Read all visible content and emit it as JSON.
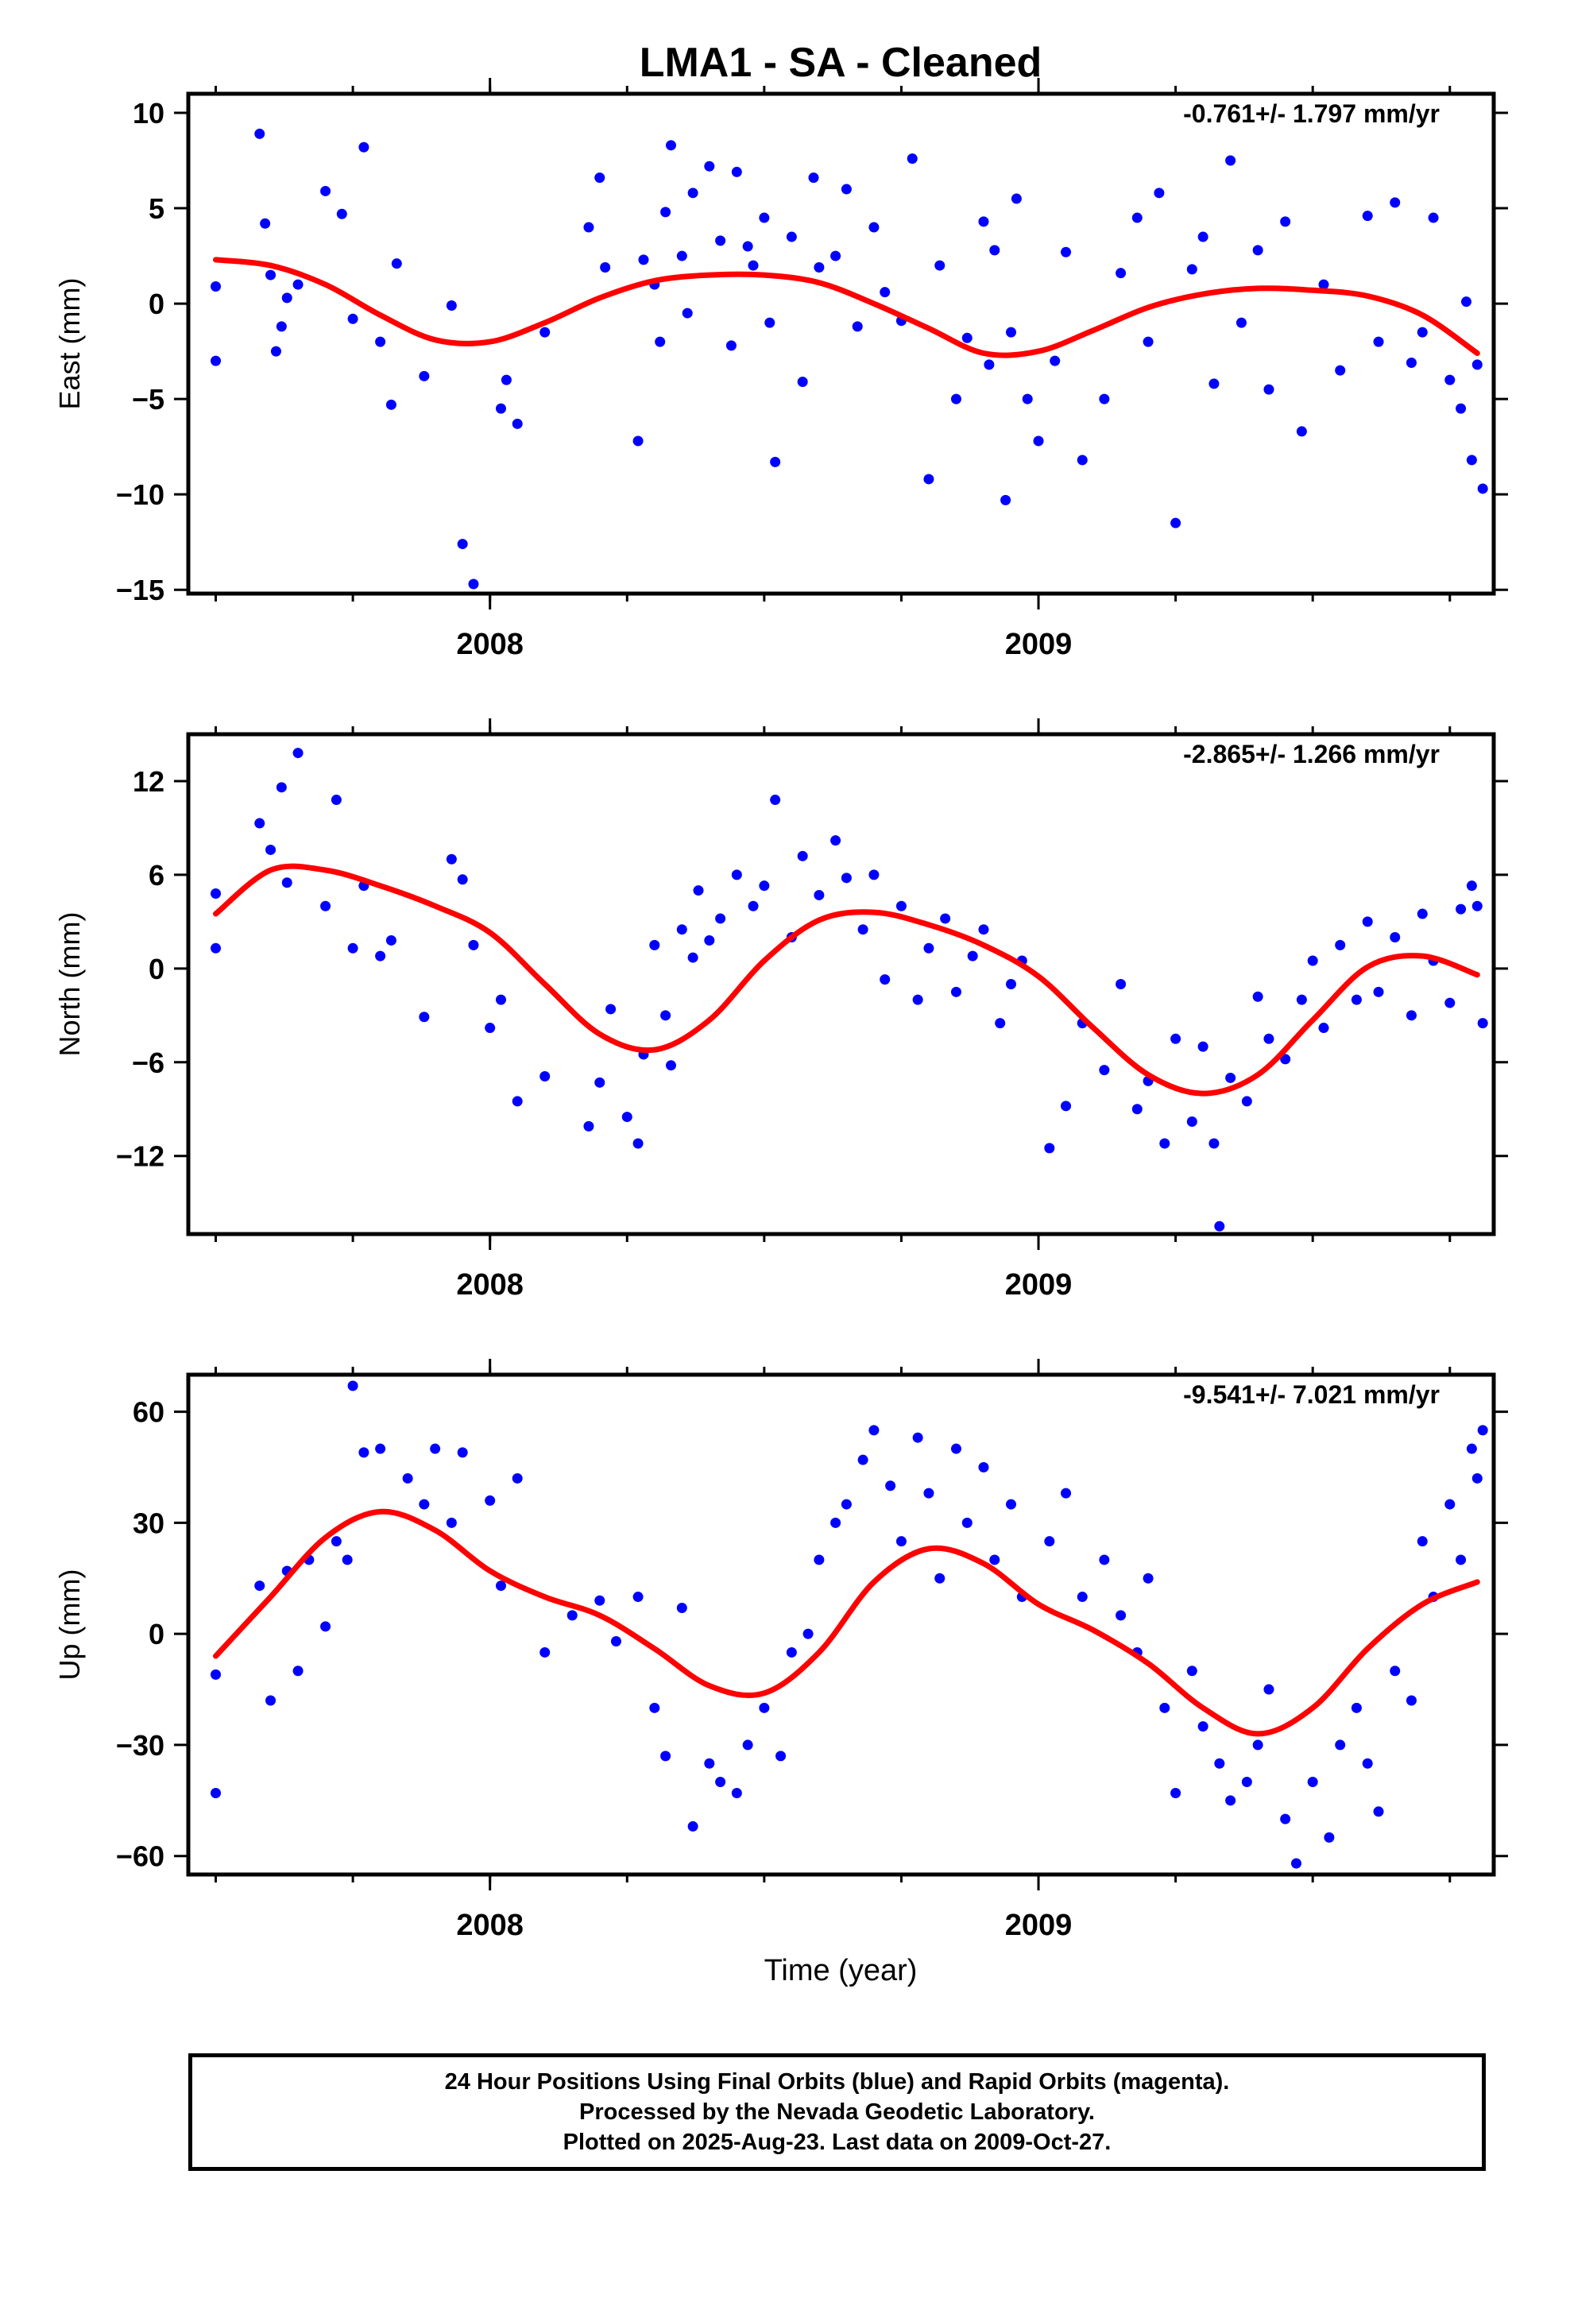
{
  "title": "LMA1  - SA - Cleaned",
  "colors": {
    "points": "#0000ff",
    "fit": "#ff0000",
    "frame": "#000000"
  },
  "xlabel": "Time (year)",
  "footer": {
    "line1": "24 Hour Positions Using Final Orbits (blue) and Rapid Orbits (magenta).",
    "line2": "Processed by the Nevada Geodetic Laboratory.",
    "line3": "Plotted on 2025-Aug-23. Last data on 2009-Oct-27."
  },
  "chart_data": [
    {
      "type": "scatter",
      "ylabel": "East (mm)",
      "rate_label": "-0.761+/- 1.797 mm/yr",
      "xlim": [
        2007.45,
        2009.83
      ],
      "ylim": [
        -15.2,
        11.0
      ],
      "xticks": [
        2008,
        2009
      ],
      "yticks": [
        10,
        5,
        0,
        -5,
        -10,
        -15
      ],
      "ytick_labels": [
        "10",
        "5",
        "0",
        "−5",
        "−10",
        "−15"
      ],
      "fit": {
        "x": [
          2007.5,
          2007.6,
          2007.7,
          2007.8,
          2007.9,
          2008.0,
          2008.1,
          2008.2,
          2008.3,
          2008.4,
          2008.5,
          2008.6,
          2008.7,
          2008.8,
          2008.9,
          2009.0,
          2009.1,
          2009.2,
          2009.3,
          2009.4,
          2009.5,
          2009.6,
          2009.7,
          2009.8
        ],
        "y": [
          2.3,
          2.0,
          1.0,
          -0.6,
          -1.9,
          -2.0,
          -1.0,
          0.3,
          1.2,
          1.5,
          1.5,
          1.1,
          0.0,
          -1.3,
          -2.6,
          -2.5,
          -1.4,
          -0.2,
          0.5,
          0.8,
          0.7,
          0.4,
          -0.6,
          -2.6
        ]
      },
      "points": {
        "x": [
          2007.5,
          2007.5,
          2007.58,
          2007.59,
          2007.6,
          2007.61,
          2007.62,
          2007.63,
          2007.65,
          2007.7,
          2007.73,
          2007.75,
          2007.77,
          2007.8,
          2007.82,
          2007.83,
          2007.88,
          2007.93,
          2007.95,
          2007.97,
          2008.02,
          2008.03,
          2008.05,
          2008.1,
          2008.18,
          2008.2,
          2008.21,
          2008.27,
          2008.28,
          2008.3,
          2008.31,
          2008.32,
          2008.33,
          2008.35,
          2008.36,
          2008.37,
          2008.4,
          2008.42,
          2008.44,
          2008.45,
          2008.47,
          2008.48,
          2008.5,
          2008.51,
          2008.52,
          2008.55,
          2008.57,
          2008.59,
          2008.6,
          2008.63,
          2008.65,
          2008.67,
          2008.7,
          2008.72,
          2008.75,
          2008.77,
          2008.8,
          2008.82,
          2008.85,
          2008.87,
          2008.9,
          2008.91,
          2008.92,
          2008.94,
          2008.95,
          2008.96,
          2008.98,
          2009.0,
          2009.03,
          2009.05,
          2009.08,
          2009.12,
          2009.15,
          2009.18,
          2009.2,
          2009.22,
          2009.25,
          2009.28,
          2009.3,
          2009.32,
          2009.35,
          2009.37,
          2009.4,
          2009.42,
          2009.45,
          2009.48,
          2009.52,
          2009.55,
          2009.6,
          2009.62,
          2009.65,
          2009.68,
          2009.7,
          2009.72,
          2009.75,
          2009.77,
          2009.78,
          2009.79,
          2009.8,
          2009.81
        ],
        "y": [
          0.9,
          -3.0,
          8.9,
          4.2,
          1.5,
          -2.5,
          -1.2,
          0.3,
          1.0,
          5.9,
          4.7,
          -0.8,
          8.2,
          -2.0,
          -5.3,
          2.1,
          -3.8,
          -0.1,
          -12.6,
          -14.7,
          -5.5,
          -4.0,
          -6.3,
          -1.5,
          4.0,
          6.6,
          1.9,
          -7.2,
          2.3,
          1.0,
          -2.0,
          4.8,
          8.3,
          2.5,
          -0.5,
          5.8,
          7.2,
          3.3,
          -2.2,
          6.9,
          3.0,
          2.0,
          4.5,
          -1.0,
          -8.3,
          3.5,
          -4.1,
          6.6,
          1.9,
          2.5,
          6.0,
          -1.2,
          4.0,
          0.6,
          -0.9,
          7.6,
          -9.2,
          2.0,
          -5.0,
          -1.8,
          4.3,
          -3.2,
          2.8,
          -10.3,
          -1.5,
          5.5,
          -5.0,
          -7.2,
          -3.0,
          2.7,
          -8.2,
          -5.0,
          1.6,
          4.5,
          -2.0,
          5.8,
          -11.5,
          1.8,
          3.5,
          -4.2,
          7.5,
          -1.0,
          2.8,
          -4.5,
          4.3,
          -6.7,
          1.0,
          -3.5,
          4.6,
          -2.0,
          5.3,
          -3.1,
          -1.5,
          4.5,
          -4.0,
          -5.5,
          0.1,
          -8.2,
          -3.2,
          -9.7
        ]
      }
    },
    {
      "type": "scatter",
      "ylabel": "North (mm)",
      "rate_label": "-2.865+/- 1.266 mm/yr",
      "xlim": [
        2007.45,
        2009.83
      ],
      "ylim": [
        -17.0,
        15.0
      ],
      "xticks": [
        2008,
        2009
      ],
      "yticks": [
        12,
        6,
        0,
        -6,
        -12
      ],
      "ytick_labels": [
        "12",
        "6",
        "0",
        "−6",
        "−12"
      ],
      "fit": {
        "x": [
          2007.5,
          2007.6,
          2007.7,
          2007.8,
          2007.9,
          2008.0,
          2008.1,
          2008.2,
          2008.3,
          2008.4,
          2008.5,
          2008.6,
          2008.7,
          2008.8,
          2008.9,
          2009.0,
          2009.1,
          2009.2,
          2009.3,
          2009.4,
          2009.5,
          2009.6,
          2009.7,
          2009.8
        ],
        "y": [
          3.5,
          6.3,
          6.3,
          5.3,
          4.0,
          2.3,
          -1.0,
          -4.2,
          -5.2,
          -3.3,
          0.5,
          3.1,
          3.6,
          2.8,
          1.5,
          -0.5,
          -3.8,
          -6.8,
          -8.0,
          -6.8,
          -3.3,
          0.1,
          0.8,
          -0.4
        ]
      },
      "points": {
        "x": [
          2007.5,
          2007.5,
          2007.58,
          2007.6,
          2007.62,
          2007.63,
          2007.65,
          2007.7,
          2007.72,
          2007.75,
          2007.77,
          2007.8,
          2007.82,
          2007.88,
          2007.93,
          2007.95,
          2007.97,
          2008.0,
          2008.02,
          2008.05,
          2008.1,
          2008.18,
          2008.2,
          2008.22,
          2008.25,
          2008.27,
          2008.28,
          2008.3,
          2008.32,
          2008.33,
          2008.35,
          2008.37,
          2008.38,
          2008.4,
          2008.42,
          2008.45,
          2008.48,
          2008.5,
          2008.52,
          2008.55,
          2008.57,
          2008.6,
          2008.63,
          2008.65,
          2008.68,
          2008.7,
          2008.72,
          2008.75,
          2008.78,
          2008.8,
          2008.83,
          2008.85,
          2008.88,
          2008.9,
          2008.93,
          2008.95,
          2008.97,
          2009.02,
          2009.05,
          2009.08,
          2009.12,
          2009.15,
          2009.18,
          2009.2,
          2009.23,
          2009.25,
          2009.28,
          2009.3,
          2009.32,
          2009.33,
          2009.35,
          2009.38,
          2009.4,
          2009.42,
          2009.45,
          2009.48,
          2009.5,
          2009.52,
          2009.55,
          2009.58,
          2009.6,
          2009.62,
          2009.65,
          2009.68,
          2009.7,
          2009.72,
          2009.75,
          2009.77,
          2009.79,
          2009.8,
          2009.81
        ],
        "y": [
          4.8,
          1.3,
          9.3,
          7.6,
          11.6,
          5.5,
          13.8,
          4.0,
          10.8,
          1.3,
          5.3,
          0.8,
          1.8,
          -3.1,
          7.0,
          5.7,
          1.5,
          -3.8,
          -2.0,
          -8.5,
          -6.9,
          -10.1,
          -7.3,
          -2.6,
          -9.5,
          -11.2,
          -5.5,
          1.5,
          -3.0,
          -6.2,
          2.5,
          0.7,
          5.0,
          1.8,
          3.2,
          6.0,
          4.0,
          5.3,
          10.8,
          2.0,
          7.2,
          4.7,
          8.2,
          5.8,
          2.5,
          6.0,
          -0.7,
          4.0,
          -2.0,
          1.3,
          3.2,
          -1.5,
          0.8,
          2.5,
          -3.5,
          -1.0,
          0.5,
          -11.5,
          -8.8,
          -3.5,
          -6.5,
          -1.0,
          -9.0,
          -7.2,
          -11.2,
          -4.5,
          -9.8,
          -5.0,
          -11.2,
          -16.5,
          -7.0,
          -8.5,
          -1.8,
          -4.5,
          -5.8,
          -2.0,
          0.5,
          -3.8,
          1.5,
          -2.0,
          3.0,
          -1.5,
          2.0,
          -3.0,
          3.5,
          0.5,
          -2.2,
          3.8,
          5.3,
          4.0,
          -3.5
        ]
      }
    },
    {
      "type": "scatter",
      "ylabel": "Up (mm)",
      "rate_label": "-9.541+/- 7.021 mm/yr",
      "xlim": [
        2007.45,
        2009.83
      ],
      "ylim": [
        -65.0,
        70.0
      ],
      "xticks": [
        2008,
        2009
      ],
      "yticks": [
        60,
        30,
        0,
        -30,
        -60
      ],
      "ytick_labels": [
        "60",
        "30",
        "0",
        "−30",
        "−60"
      ],
      "fit": {
        "x": [
          2007.5,
          2007.6,
          2007.7,
          2007.8,
          2007.9,
          2008.0,
          2008.1,
          2008.2,
          2008.3,
          2008.4,
          2008.5,
          2008.6,
          2008.7,
          2008.8,
          2008.9,
          2009.0,
          2009.1,
          2009.2,
          2009.3,
          2009.4,
          2009.5,
          2009.6,
          2009.7,
          2009.8
        ],
        "y": [
          -6.0,
          10.0,
          26.0,
          33.0,
          28.0,
          17.0,
          10.0,
          5.0,
          -4.0,
          -14.0,
          -16.0,
          -5.0,
          14.0,
          23.0,
          19.0,
          8.0,
          1.0,
          -8.0,
          -20.0,
          -27.0,
          -20.0,
          -4.0,
          8.0,
          14.0
        ]
      },
      "points": {
        "x": [
          2007.5,
          2007.5,
          2007.58,
          2007.6,
          2007.63,
          2007.65,
          2007.67,
          2007.7,
          2007.72,
          2007.74,
          2007.75,
          2007.77,
          2007.8,
          2007.85,
          2007.88,
          2007.9,
          2007.93,
          2007.95,
          2008.0,
          2008.02,
          2008.05,
          2008.1,
          2008.15,
          2008.2,
          2008.23,
          2008.27,
          2008.3,
          2008.32,
          2008.35,
          2008.37,
          2008.4,
          2008.42,
          2008.45,
          2008.47,
          2008.5,
          2008.53,
          2008.55,
          2008.58,
          2008.6,
          2008.63,
          2008.65,
          2008.68,
          2008.7,
          2008.73,
          2008.75,
          2008.78,
          2008.8,
          2008.82,
          2008.85,
          2008.87,
          2008.9,
          2008.92,
          2008.95,
          2008.97,
          2009.02,
          2009.05,
          2009.08,
          2009.12,
          2009.15,
          2009.18,
          2009.2,
          2009.23,
          2009.25,
          2009.28,
          2009.3,
          2009.33,
          2009.35,
          2009.38,
          2009.4,
          2009.42,
          2009.45,
          2009.47,
          2009.5,
          2009.53,
          2009.55,
          2009.58,
          2009.6,
          2009.62,
          2009.65,
          2009.68,
          2009.7,
          2009.72,
          2009.75,
          2009.77,
          2009.79,
          2009.8,
          2009.81
        ],
        "y": [
          -11.0,
          -43.0,
          13.0,
          -18.0,
          17.0,
          -10.0,
          20.0,
          2.0,
          25.0,
          20.0,
          67.0,
          49.0,
          50.0,
          42.0,
          35.0,
          50.0,
          30.0,
          49.0,
          36.0,
          13.0,
          42.0,
          -5.0,
          5.0,
          9.0,
          -2.0,
          10.0,
          -20.0,
          -33.0,
          7.0,
          -52.0,
          -35.0,
          -40.0,
          -43.0,
          -30.0,
          -20.0,
          -33.0,
          -5.0,
          0.0,
          20.0,
          30.0,
          35.0,
          47.0,
          55.0,
          40.0,
          25.0,
          53.0,
          38.0,
          15.0,
          50.0,
          30.0,
          45.0,
          20.0,
          35.0,
          10.0,
          25.0,
          38.0,
          10.0,
          20.0,
          5.0,
          -5.0,
          15.0,
          -20.0,
          -43.0,
          -10.0,
          -25.0,
          -35.0,
          -45.0,
          -40.0,
          -30.0,
          -15.0,
          -50.0,
          -62.0,
          -40.0,
          -55.0,
          -30.0,
          -20.0,
          -35.0,
          -48.0,
          -10.0,
          -18.0,
          25.0,
          10.0,
          35.0,
          20.0,
          50.0,
          42.0,
          55.0
        ]
      }
    }
  ]
}
